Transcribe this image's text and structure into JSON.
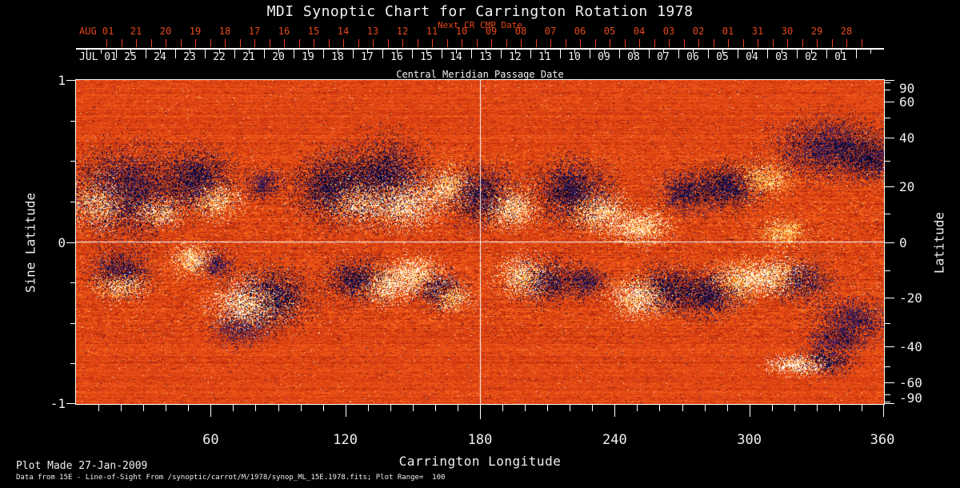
{
  "title": "MDI Synoptic Chart for Carrington Rotation 1978",
  "top_axis": {
    "next_cr_label": "Next CR CMP Date",
    "next_cr_month": "AUG 01",
    "next_cr_days": [
      "21",
      "20",
      "19",
      "18",
      "17",
      "16",
      "15",
      "14",
      "13",
      "12",
      "11",
      "10",
      "09",
      "08",
      "07",
      "06",
      "05",
      "04",
      "03",
      "02",
      "01",
      "31",
      "30",
      "29",
      "28"
    ],
    "cmp_month": "JUL 01",
    "cmp_days": [
      "25",
      "24",
      "23",
      "22",
      "21",
      "20",
      "19",
      "18",
      "17",
      "16",
      "15",
      "14",
      "13",
      "12",
      "11",
      "10",
      "09",
      "08",
      "07",
      "06",
      "05",
      "04",
      "03",
      "02",
      "01"
    ],
    "cmp_axis_label": "Central Meridian Passage Date"
  },
  "left_axis": {
    "label": "Sine Latitude",
    "ticks": [
      "1",
      "0",
      "-1"
    ]
  },
  "right_axis": {
    "label": "Latitude",
    "ticks": [
      "90",
      "60",
      "40",
      "20",
      "0",
      "-20",
      "-40",
      "-60",
      "-90"
    ]
  },
  "bottom_axis": {
    "label": "Carrington Longitude",
    "ticks": [
      "60",
      "120",
      "180",
      "240",
      "300",
      "360"
    ]
  },
  "footer": {
    "line1": "Plot Made 27-Jan-2009",
    "line2": "Data from 15E - Line-of-Sight From /synoptic/carrot/M/1978/synop_ML_15E.1978.fits; Plot Range=  100"
  },
  "colors": {
    "background": "#000000",
    "axis_text": "#f0f0f0",
    "axis_line": "#ffffff",
    "next_cr_red": "#e8481a",
    "map_base_orange": "#e8481a",
    "map_positive_white": "#ffffff",
    "map_negative_blue": "#000028"
  },
  "chart_data": {
    "type": "heatmap",
    "title": "MDI Synoptic Chart for Carrington Rotation 1978",
    "xlabel": "Carrington Longitude",
    "ylabel_left": "Sine Latitude",
    "ylabel_right": "Latitude",
    "top_axis_label": "Central Meridian Passage Date",
    "secondary_top_axis_label": "Next CR CMP Date",
    "xlim": [
      0,
      360
    ],
    "ylim_sine_latitude": [
      -1,
      1
    ],
    "latitude_ticks_deg": [
      90,
      60,
      40,
      20,
      0,
      -20,
      -40,
      -60,
      -90
    ],
    "longitude_ticks_deg": [
      60,
      120,
      180,
      240,
      300,
      360
    ],
    "value_range_gauss": [
      -100,
      100
    ],
    "grid": {
      "equator_line_sine_latitude": 0,
      "central_meridian_line_longitude": 180
    },
    "colormap": "negative: dark blue/black, quiet: red-orange, positive: yellow to white",
    "active_regions_lon_sin_rlon_rsin_pol_strength": [
      [
        11,
        0.24,
        11,
        0.12,
        1,
        0.5
      ],
      [
        23,
        0.31,
        20,
        0.22,
        -1,
        0.5
      ],
      [
        37,
        0.19,
        9,
        0.08,
        1,
        0.45
      ],
      [
        54,
        0.39,
        13,
        0.15,
        -1,
        0.5
      ],
      [
        62,
        0.26,
        9,
        0.09,
        1,
        0.45
      ],
      [
        84,
        0.36,
        7,
        0.08,
        -1,
        0.4
      ],
      [
        114,
        0.34,
        14,
        0.17,
        -1,
        0.55
      ],
      [
        125,
        0.26,
        11,
        0.11,
        1,
        0.5
      ],
      [
        137,
        0.39,
        16,
        0.2,
        -1,
        0.55
      ],
      [
        146,
        0.24,
        13,
        0.12,
        1,
        0.6
      ],
      [
        166,
        0.34,
        9,
        0.1,
        1,
        0.45
      ],
      [
        180,
        0.29,
        13,
        0.15,
        -1,
        0.5
      ],
      [
        194,
        0.21,
        10,
        0.1,
        1,
        0.5
      ],
      [
        221,
        0.31,
        14,
        0.16,
        -1,
        0.55
      ],
      [
        232,
        0.19,
        11,
        0.1,
        1,
        0.5
      ],
      [
        251,
        0.09,
        11,
        0.09,
        1,
        0.5
      ],
      [
        271,
        0.31,
        9,
        0.1,
        -1,
        0.45
      ],
      [
        289,
        0.34,
        13,
        0.12,
        -1,
        0.5
      ],
      [
        307,
        0.39,
        9,
        0.09,
        1,
        0.35
      ],
      [
        315,
        0.06,
        9,
        0.07,
        1,
        0.35
      ],
      [
        337,
        0.58,
        21,
        0.15,
        -1,
        0.45
      ],
      [
        355,
        0.51,
        11,
        0.1,
        -1,
        0.45
      ],
      [
        20,
        -0.18,
        11,
        0.11,
        -1,
        0.5
      ],
      [
        20,
        -0.27,
        9,
        0.07,
        1,
        0.45
      ],
      [
        52,
        -0.11,
        8,
        0.08,
        1,
        0.45
      ],
      [
        62,
        -0.14,
        7,
        0.07,
        -1,
        0.4
      ],
      [
        77,
        -0.38,
        13,
        0.12,
        1,
        0.65
      ],
      [
        87,
        -0.34,
        14,
        0.15,
        -1,
        0.55
      ],
      [
        73,
        -0.53,
        11,
        0.09,
        -1,
        0.35
      ],
      [
        125,
        -0.23,
        11,
        0.11,
        -1,
        0.5
      ],
      [
        137,
        -0.27,
        9,
        0.09,
        1,
        0.5
      ],
      [
        151,
        -0.21,
        11,
        0.1,
        1,
        0.5
      ],
      [
        161,
        -0.29,
        9,
        0.09,
        -1,
        0.45
      ],
      [
        168,
        -0.34,
        7,
        0.07,
        1,
        0.45
      ],
      [
        200,
        -0.21,
        10,
        0.1,
        1,
        0.5
      ],
      [
        210,
        -0.24,
        11,
        0.11,
        -1,
        0.5
      ],
      [
        227,
        -0.24,
        8,
        0.08,
        -1,
        0.45
      ],
      [
        251,
        -0.34,
        11,
        0.1,
        1,
        0.55
      ],
      [
        263,
        -0.29,
        11,
        0.11,
        -1,
        0.5
      ],
      [
        281,
        -0.32,
        13,
        0.12,
        -1,
        0.5
      ],
      [
        295,
        -0.24,
        11,
        0.1,
        1,
        0.4
      ],
      [
        311,
        -0.21,
        13,
        0.09,
        1,
        0.5
      ],
      [
        323,
        -0.24,
        11,
        0.1,
        -1,
        0.45
      ],
      [
        345,
        -0.48,
        13,
        0.11,
        -1,
        0.4
      ],
      [
        322,
        -0.757,
        11,
        0.05,
        1,
        0.65
      ],
      [
        334,
        -0.73,
        10,
        0.07,
        -1,
        0.5
      ],
      [
        339,
        -0.61,
        11,
        0.06,
        -1,
        0.35
      ]
    ]
  }
}
